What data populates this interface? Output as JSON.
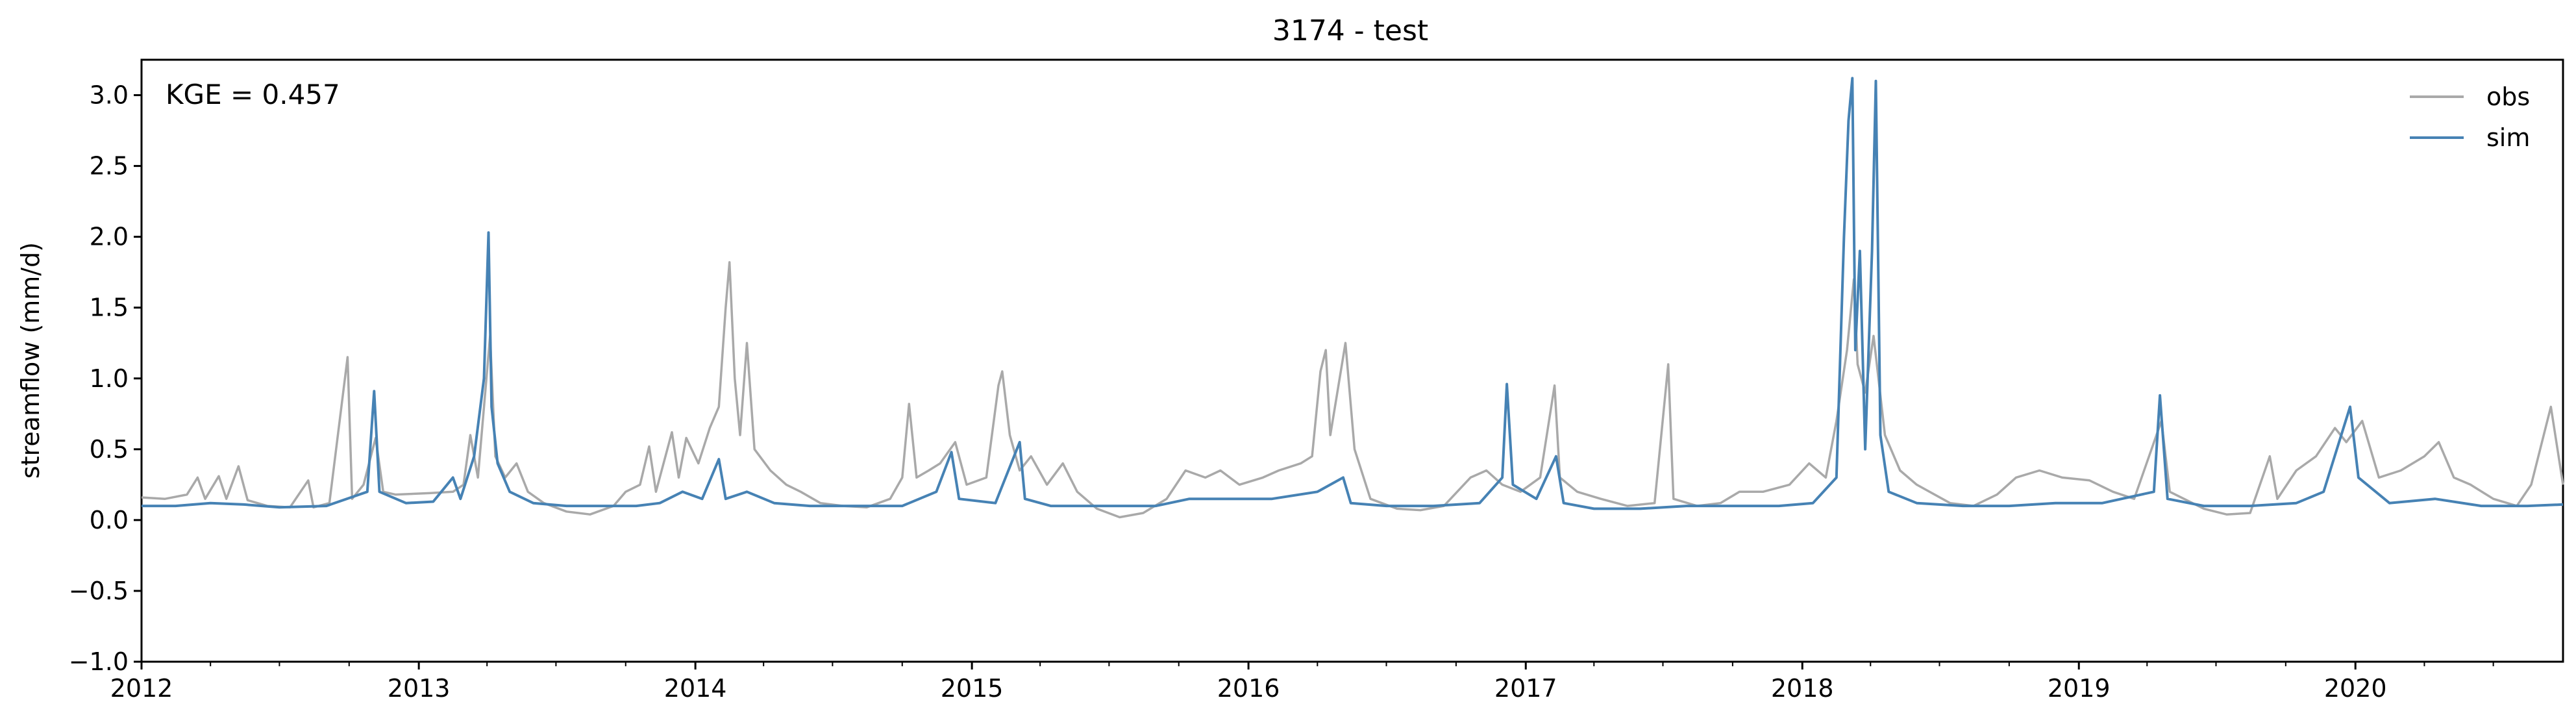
{
  "chart_data": {
    "type": "line",
    "title": "3174 - test",
    "ylabel": "streamflow (mm/d)",
    "xlabel": "",
    "annotation": "KGE = 0.457",
    "xlim": [
      "2012-01-01",
      "2020-10-01"
    ],
    "ylim": [
      -1.0,
      3.25
    ],
    "yticks": [
      "−1.0",
      "−0.5",
      "0.0",
      "0.5",
      "1.0",
      "1.5",
      "2.0",
      "2.5",
      "3.0"
    ],
    "ytick_values": [
      -1.0,
      -0.5,
      0.0,
      0.5,
      1.0,
      1.5,
      2.0,
      2.5,
      3.0
    ],
    "xticks": [
      "2012",
      "2013",
      "2014",
      "2015",
      "2016",
      "2017",
      "2018",
      "2019",
      "2020"
    ],
    "xtick_dates": [
      "2012-01-01",
      "2013-01-01",
      "2014-01-01",
      "2015-01-01",
      "2016-01-01",
      "2017-01-01",
      "2018-01-01",
      "2019-01-01",
      "2020-01-01"
    ],
    "grid": false,
    "legend_position": "top-right",
    "series": [
      {
        "name": "obs",
        "color": "#a9a9a9",
        "points": [
          [
            "2012-01-01",
            0.16
          ],
          [
            "2012-02-01",
            0.15
          ],
          [
            "2012-03-01",
            0.18
          ],
          [
            "2012-03-15",
            0.3
          ],
          [
            "2012-03-25",
            0.15
          ],
          [
            "2012-04-12",
            0.31
          ],
          [
            "2012-04-22",
            0.15
          ],
          [
            "2012-05-08",
            0.38
          ],
          [
            "2012-05-20",
            0.14
          ],
          [
            "2012-06-15",
            0.1
          ],
          [
            "2012-07-15",
            0.09
          ],
          [
            "2012-08-08",
            0.28
          ],
          [
            "2012-08-15",
            0.09
          ],
          [
            "2012-09-05",
            0.12
          ],
          [
            "2012-09-29",
            1.15
          ],
          [
            "2012-10-05",
            0.15
          ],
          [
            "2012-10-20",
            0.25
          ],
          [
            "2012-11-05",
            0.58
          ],
          [
            "2012-11-15",
            0.2
          ],
          [
            "2012-12-01",
            0.18
          ],
          [
            "2013-01-15",
            0.19
          ],
          [
            "2013-02-15",
            0.2
          ],
          [
            "2013-03-01",
            0.25
          ],
          [
            "2013-03-10",
            0.6
          ],
          [
            "2013-03-20",
            0.3
          ],
          [
            "2013-04-05",
            1.3
          ],
          [
            "2013-04-12",
            0.45
          ],
          [
            "2013-04-25",
            0.3
          ],
          [
            "2013-05-10",
            0.4
          ],
          [
            "2013-05-25",
            0.2
          ],
          [
            "2013-06-15",
            0.12
          ],
          [
            "2013-07-15",
            0.06
          ],
          [
            "2013-08-15",
            0.04
          ],
          [
            "2013-09-15",
            0.1
          ],
          [
            "2013-10-01",
            0.2
          ],
          [
            "2013-10-20",
            0.25
          ],
          [
            "2013-11-01",
            0.52
          ],
          [
            "2013-11-10",
            0.2
          ],
          [
            "2013-12-01",
            0.62
          ],
          [
            "2013-12-10",
            0.3
          ],
          [
            "2013-12-20",
            0.58
          ],
          [
            "2014-01-05",
            0.4
          ],
          [
            "2014-01-20",
            0.65
          ],
          [
            "2014-02-01",
            0.8
          ],
          [
            "2014-02-10",
            1.5
          ],
          [
            "2014-02-15",
            1.82
          ],
          [
            "2014-02-22",
            1.0
          ],
          [
            "2014-03-01",
            0.6
          ],
          [
            "2014-03-10",
            1.25
          ],
          [
            "2014-03-20",
            0.5
          ],
          [
            "2014-04-10",
            0.35
          ],
          [
            "2014-05-01",
            0.25
          ],
          [
            "2014-05-20",
            0.2
          ],
          [
            "2014-06-15",
            0.12
          ],
          [
            "2014-07-15",
            0.1
          ],
          [
            "2014-08-15",
            0.09
          ],
          [
            "2014-09-15",
            0.15
          ],
          [
            "2014-10-01",
            0.3
          ],
          [
            "2014-10-10",
            0.82
          ],
          [
            "2014-10-20",
            0.3
          ],
          [
            "2014-11-05",
            0.35
          ],
          [
            "2014-11-20",
            0.4
          ],
          [
            "2014-12-10",
            0.55
          ],
          [
            "2014-12-25",
            0.25
          ],
          [
            "2015-01-20",
            0.3
          ],
          [
            "2015-02-05",
            0.95
          ],
          [
            "2015-02-10",
            1.05
          ],
          [
            "2015-02-20",
            0.6
          ],
          [
            "2015-03-05",
            0.35
          ],
          [
            "2015-03-20",
            0.45
          ],
          [
            "2015-04-10",
            0.25
          ],
          [
            "2015-05-01",
            0.4
          ],
          [
            "2015-05-20",
            0.2
          ],
          [
            "2015-06-15",
            0.08
          ],
          [
            "2015-07-15",
            0.02
          ],
          [
            "2015-08-15",
            0.05
          ],
          [
            "2015-09-15",
            0.15
          ],
          [
            "2015-10-10",
            0.35
          ],
          [
            "2015-11-05",
            0.3
          ],
          [
            "2015-11-25",
            0.35
          ],
          [
            "2015-12-20",
            0.25
          ],
          [
            "2016-01-20",
            0.3
          ],
          [
            "2016-02-10",
            0.35
          ],
          [
            "2016-03-10",
            0.4
          ],
          [
            "2016-03-25",
            0.45
          ],
          [
            "2016-04-05",
            1.05
          ],
          [
            "2016-04-12",
            1.2
          ],
          [
            "2016-04-18",
            0.6
          ],
          [
            "2016-05-08",
            1.25
          ],
          [
            "2016-05-20",
            0.5
          ],
          [
            "2016-06-10",
            0.15
          ],
          [
            "2016-07-15",
            0.08
          ],
          [
            "2016-08-15",
            0.07
          ],
          [
            "2016-09-15",
            0.1
          ],
          [
            "2016-10-20",
            0.3
          ],
          [
            "2016-11-10",
            0.35
          ],
          [
            "2016-12-01",
            0.25
          ],
          [
            "2016-12-25",
            0.2
          ],
          [
            "2017-01-20",
            0.3
          ],
          [
            "2017-02-08",
            0.95
          ],
          [
            "2017-02-15",
            0.3
          ],
          [
            "2017-03-10",
            0.2
          ],
          [
            "2017-04-10",
            0.15
          ],
          [
            "2017-05-15",
            0.1
          ],
          [
            "2017-06-20",
            0.12
          ],
          [
            "2017-07-08",
            1.1
          ],
          [
            "2017-07-15",
            0.15
          ],
          [
            "2017-08-15",
            0.1
          ],
          [
            "2017-09-15",
            0.12
          ],
          [
            "2017-10-10",
            0.2
          ],
          [
            "2017-11-10",
            0.2
          ],
          [
            "2017-12-15",
            0.25
          ],
          [
            "2018-01-10",
            0.4
          ],
          [
            "2018-02-01",
            0.3
          ],
          [
            "2018-02-15",
            0.7
          ],
          [
            "2018-03-01",
            1.2
          ],
          [
            "2018-03-10",
            1.7
          ],
          [
            "2018-03-15",
            1.1
          ],
          [
            "2018-03-25",
            0.9
          ],
          [
            "2018-04-05",
            1.3
          ],
          [
            "2018-04-20",
            0.6
          ],
          [
            "2018-05-10",
            0.35
          ],
          [
            "2018-06-01",
            0.25
          ],
          [
            "2018-07-15",
            0.12
          ],
          [
            "2018-08-15",
            0.1
          ],
          [
            "2018-09-15",
            0.18
          ],
          [
            "2018-10-10",
            0.3
          ],
          [
            "2018-11-10",
            0.35
          ],
          [
            "2018-12-10",
            0.3
          ],
          [
            "2019-01-15",
            0.28
          ],
          [
            "2019-02-15",
            0.2
          ],
          [
            "2019-03-15",
            0.15
          ],
          [
            "2019-04-20",
            0.7
          ],
          [
            "2019-05-01",
            0.2
          ],
          [
            "2019-06-15",
            0.08
          ],
          [
            "2019-07-15",
            0.04
          ],
          [
            "2019-08-15",
            0.05
          ],
          [
            "2019-09-10",
            0.45
          ],
          [
            "2019-09-20",
            0.15
          ],
          [
            "2019-10-15",
            0.35
          ],
          [
            "2019-11-10",
            0.45
          ],
          [
            "2019-12-05",
            0.65
          ],
          [
            "2019-12-20",
            0.55
          ],
          [
            "2020-01-10",
            0.7
          ],
          [
            "2020-02-01",
            0.3
          ],
          [
            "2020-03-01",
            0.35
          ],
          [
            "2020-04-01",
            0.45
          ],
          [
            "2020-04-20",
            0.55
          ],
          [
            "2020-05-10",
            0.3
          ],
          [
            "2020-06-01",
            0.25
          ],
          [
            "2020-07-01",
            0.15
          ],
          [
            "2020-08-01",
            0.1
          ],
          [
            "2020-08-20",
            0.25
          ],
          [
            "2020-09-15",
            0.8
          ],
          [
            "2020-10-01",
            0.25
          ]
        ]
      },
      {
        "name": "sim",
        "color": "#4682b4",
        "points": [
          [
            "2012-01-01",
            0.1
          ],
          [
            "2012-02-15",
            0.1
          ],
          [
            "2012-04-01",
            0.12
          ],
          [
            "2012-05-15",
            0.11
          ],
          [
            "2012-07-01",
            0.09
          ],
          [
            "2012-09-01",
            0.1
          ],
          [
            "2012-10-25",
            0.2
          ],
          [
            "2012-11-03",
            0.91
          ],
          [
            "2012-11-10",
            0.2
          ],
          [
            "2012-12-15",
            0.12
          ],
          [
            "2013-01-20",
            0.13
          ],
          [
            "2013-02-15",
            0.3
          ],
          [
            "2013-02-25",
            0.15
          ],
          [
            "2013-03-15",
            0.45
          ],
          [
            "2013-03-28",
            1.0
          ],
          [
            "2013-04-03",
            2.03
          ],
          [
            "2013-04-07",
            0.8
          ],
          [
            "2013-04-15",
            0.4
          ],
          [
            "2013-05-01",
            0.2
          ],
          [
            "2013-06-01",
            0.12
          ],
          [
            "2013-07-15",
            0.1
          ],
          [
            "2013-09-01",
            0.1
          ],
          [
            "2013-10-15",
            0.1
          ],
          [
            "2013-11-15",
            0.12
          ],
          [
            "2013-12-15",
            0.2
          ],
          [
            "2014-01-10",
            0.15
          ],
          [
            "2014-02-01",
            0.43
          ],
          [
            "2014-02-10",
            0.15
          ],
          [
            "2014-03-10",
            0.2
          ],
          [
            "2014-04-15",
            0.12
          ],
          [
            "2014-06-01",
            0.1
          ],
          [
            "2014-08-01",
            0.1
          ],
          [
            "2014-10-01",
            0.1
          ],
          [
            "2014-11-15",
            0.2
          ],
          [
            "2014-12-05",
            0.48
          ],
          [
            "2014-12-15",
            0.15
          ],
          [
            "2015-02-01",
            0.12
          ],
          [
            "2015-03-05",
            0.55
          ],
          [
            "2015-03-12",
            0.15
          ],
          [
            "2015-04-15",
            0.1
          ],
          [
            "2015-07-01",
            0.1
          ],
          [
            "2015-09-01",
            0.1
          ],
          [
            "2015-10-15",
            0.15
          ],
          [
            "2015-12-01",
            0.15
          ],
          [
            "2016-02-01",
            0.15
          ],
          [
            "2016-04-01",
            0.2
          ],
          [
            "2016-05-05",
            0.3
          ],
          [
            "2016-05-15",
            0.12
          ],
          [
            "2016-07-01",
            0.1
          ],
          [
            "2016-09-01",
            0.1
          ],
          [
            "2016-11-01",
            0.12
          ],
          [
            "2016-12-01",
            0.3
          ],
          [
            "2016-12-07",
            0.96
          ],
          [
            "2016-12-15",
            0.25
          ],
          [
            "2017-01-15",
            0.15
          ],
          [
            "2017-02-10",
            0.45
          ],
          [
            "2017-02-20",
            0.12
          ],
          [
            "2017-04-01",
            0.08
          ],
          [
            "2017-06-01",
            0.08
          ],
          [
            "2017-08-01",
            0.1
          ],
          [
            "2017-10-01",
            0.1
          ],
          [
            "2017-12-01",
            0.1
          ],
          [
            "2018-01-15",
            0.12
          ],
          [
            "2018-02-15",
            0.3
          ],
          [
            "2018-02-25",
            2.0
          ],
          [
            "2018-03-03",
            2.82
          ],
          [
            "2018-03-08",
            3.12
          ],
          [
            "2018-03-12",
            1.2
          ],
          [
            "2018-03-18",
            1.9
          ],
          [
            "2018-03-25",
            0.5
          ],
          [
            "2018-04-03",
            1.9
          ],
          [
            "2018-04-08",
            3.1
          ],
          [
            "2018-04-14",
            0.6
          ],
          [
            "2018-04-25",
            0.2
          ],
          [
            "2018-06-01",
            0.12
          ],
          [
            "2018-08-01",
            0.1
          ],
          [
            "2018-10-01",
            0.1
          ],
          [
            "2018-12-01",
            0.12
          ],
          [
            "2019-02-01",
            0.12
          ],
          [
            "2019-04-10",
            0.2
          ],
          [
            "2019-04-18",
            0.88
          ],
          [
            "2019-04-28",
            0.15
          ],
          [
            "2019-06-15",
            0.1
          ],
          [
            "2019-08-15",
            0.1
          ],
          [
            "2019-10-15",
            0.12
          ],
          [
            "2019-11-20",
            0.2
          ],
          [
            "2019-12-25",
            0.8
          ],
          [
            "2020-01-05",
            0.3
          ],
          [
            "2020-02-15",
            0.12
          ],
          [
            "2020-04-15",
            0.15
          ],
          [
            "2020-06-15",
            0.1
          ],
          [
            "2020-08-15",
            0.1
          ],
          [
            "2020-10-01",
            0.11
          ]
        ]
      }
    ]
  }
}
